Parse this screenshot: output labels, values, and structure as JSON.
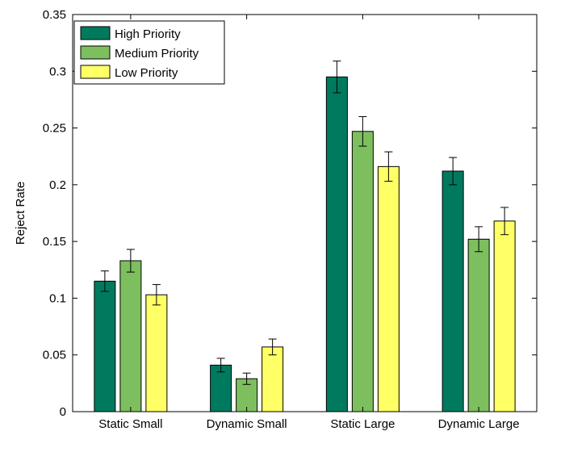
{
  "chart_data": {
    "type": "bar",
    "title": "",
    "xlabel": "",
    "ylabel": "Reject Rate",
    "ylim": [
      0,
      0.35
    ],
    "yticks": [
      0,
      0.05,
      0.1,
      0.15,
      0.2,
      0.25,
      0.3,
      0.35
    ],
    "ytick_labels": [
      "0",
      "0.05",
      "0.1",
      "0.15",
      "0.2",
      "0.25",
      "0.3",
      "0.35"
    ],
    "categories": [
      "Static Small",
      "Dynamic Small",
      "Static Large",
      "Dynamic Large"
    ],
    "series": [
      {
        "name": "High Priority",
        "color": "#007a5e",
        "values": [
          0.115,
          0.041,
          0.295,
          0.212
        ],
        "errors": [
          0.009,
          0.006,
          0.014,
          0.012
        ]
      },
      {
        "name": "Medium Priority",
        "color": "#7dbf5e",
        "values": [
          0.133,
          0.029,
          0.247,
          0.152
        ],
        "errors": [
          0.01,
          0.005,
          0.013,
          0.011
        ]
      },
      {
        "name": "Low Priority",
        "color": "#ffff66",
        "values": [
          0.103,
          0.057,
          0.216,
          0.168
        ],
        "errors": [
          0.009,
          0.007,
          0.013,
          0.012
        ]
      }
    ],
    "legend_position": "top-left",
    "grid": false
  }
}
